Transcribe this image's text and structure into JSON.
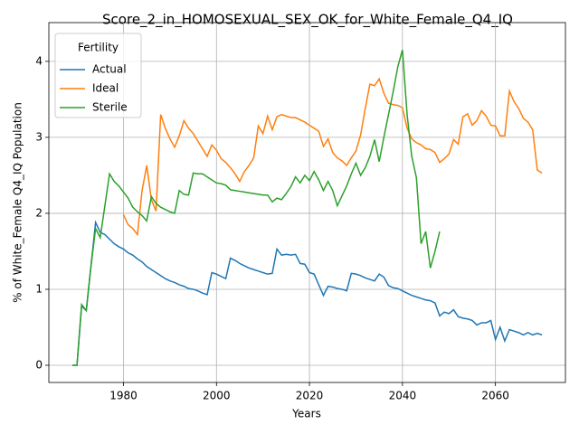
{
  "chart_data": {
    "type": "line",
    "title": "Score_2_in_HOMOSEXUAL_SEX_OK_for_White_Female_Q4_IQ",
    "xlabel": "Years",
    "ylabel": "% of White_Female Q4_IQ Population",
    "legend_title": "Fertility",
    "legend": "upper left",
    "grid": true,
    "xlim": [
      1963.95,
      2075.05
    ],
    "xticks": [
      1980,
      2000,
      2020,
      2040,
      2060
    ],
    "ylim": [
      -0.226,
      4.51
    ],
    "yticks": [
      0,
      1,
      2,
      3,
      4
    ],
    "x": [
      1969,
      1970,
      1971,
      1972,
      1973,
      1974,
      1975,
      1976,
      1977,
      1978,
      1979,
      1980,
      1981,
      1982,
      1983,
      1984,
      1985,
      1986,
      1987,
      1988,
      1989,
      1990,
      1991,
      1992,
      1993,
      1994,
      1995,
      1996,
      1997,
      1998,
      1999,
      2000,
      2001,
      2002,
      2003,
      2004,
      2005,
      2006,
      2007,
      2008,
      2009,
      2010,
      2011,
      2012,
      2013,
      2014,
      2015,
      2016,
      2017,
      2018,
      2019,
      2020,
      2021,
      2022,
      2023,
      2024,
      2025,
      2026,
      2027,
      2028,
      2029,
      2030,
      2031,
      2032,
      2033,
      2034,
      2035,
      2036,
      2037,
      2038,
      2039,
      2040,
      2041,
      2042,
      2043,
      2044,
      2045,
      2046,
      2047,
      2048,
      2049,
      2050,
      2051,
      2052,
      2053,
      2054,
      2055,
      2056,
      2057,
      2058,
      2059,
      2060,
      2061,
      2062,
      2063,
      2064,
      2065,
      2066,
      2067,
      2068,
      2069,
      2070
    ],
    "series": [
      {
        "name": "Actual",
        "color": "#1f77b4",
        "values": [
          0,
          0,
          0.78,
          0.72,
          1.3,
          1.88,
          1.75,
          1.72,
          1.66,
          1.6,
          1.56,
          1.53,
          1.48,
          1.45,
          1.4,
          1.36,
          1.3,
          1.26,
          1.22,
          1.18,
          1.14,
          1.11,
          1.09,
          1.06,
          1.04,
          1.01,
          1.0,
          0.98,
          0.95,
          0.93,
          1.22,
          1.2,
          1.17,
          1.14,
          1.41,
          1.38,
          1.34,
          1.31,
          1.28,
          1.26,
          1.24,
          1.22,
          1.2,
          1.21,
          1.53,
          1.45,
          1.46,
          1.45,
          1.46,
          1.34,
          1.33,
          1.22,
          1.2,
          1.06,
          0.92,
          1.04,
          1.03,
          1.01,
          1.0,
          0.98,
          1.21,
          1.2,
          1.18,
          1.15,
          1.13,
          1.11,
          1.2,
          1.16,
          1.05,
          1.02,
          1.01,
          0.98,
          0.95,
          0.92,
          0.9,
          0.88,
          0.86,
          0.85,
          0.82,
          0.65,
          0.7,
          0.68,
          0.73,
          0.64,
          0.62,
          0.61,
          0.59,
          0.53,
          0.56,
          0.56,
          0.59,
          0.34,
          0.5,
          0.32,
          0.47,
          0.45,
          0.43,
          0.4,
          0.43,
          0.4,
          0.42,
          0.4
        ]
      },
      {
        "name": "Ideal",
        "color": "#ff7f0e",
        "values": [
          null,
          null,
          null,
          null,
          null,
          null,
          null,
          null,
          null,
          null,
          null,
          1.98,
          1.85,
          1.8,
          1.72,
          2.3,
          2.63,
          2.18,
          2.03,
          3.3,
          3.12,
          2.98,
          2.87,
          3.02,
          3.22,
          3.12,
          3.05,
          2.95,
          2.85,
          2.75,
          2.9,
          2.83,
          2.72,
          2.67,
          2.6,
          2.52,
          2.42,
          2.55,
          2.63,
          2.73,
          3.15,
          3.05,
          3.28,
          3.1,
          3.27,
          3.3,
          3.28,
          3.26,
          3.26,
          3.23,
          3.2,
          3.16,
          3.12,
          3.08,
          2.88,
          2.98,
          2.8,
          2.73,
          2.69,
          2.63,
          2.73,
          2.82,
          3.03,
          3.38,
          3.7,
          3.68,
          3.77,
          3.58,
          3.45,
          3.43,
          3.42,
          3.39,
          3.12,
          2.98,
          2.93,
          2.9,
          2.85,
          2.84,
          2.8,
          2.67,
          2.72,
          2.78,
          2.97,
          2.91,
          3.27,
          3.31,
          3.16,
          3.22,
          3.35,
          3.28,
          3.16,
          3.15,
          3.02,
          3.02,
          3.61,
          3.47,
          3.38,
          3.25,
          3.2,
          3.1,
          2.57,
          2.53
        ]
      },
      {
        "name": "Sterile",
        "color": "#2ca02c",
        "values": [
          0,
          0,
          0.8,
          0.72,
          1.3,
          1.8,
          1.68,
          2.1,
          2.52,
          2.42,
          2.36,
          2.28,
          2.2,
          2.08,
          2.02,
          1.97,
          1.9,
          2.22,
          2.13,
          2.08,
          2.05,
          2.02,
          2.0,
          2.3,
          2.25,
          2.24,
          2.53,
          2.52,
          2.52,
          2.48,
          2.44,
          2.4,
          2.39,
          2.37,
          2.31,
          2.3,
          2.29,
          2.28,
          2.27,
          2.26,
          2.25,
          2.24,
          2.24,
          2.15,
          2.2,
          2.18,
          2.26,
          2.35,
          2.48,
          2.4,
          2.5,
          2.43,
          2.55,
          2.44,
          2.3,
          2.42,
          2.3,
          2.1,
          2.23,
          2.36,
          2.52,
          2.66,
          2.5,
          2.6,
          2.75,
          2.97,
          2.68,
          3.0,
          3.3,
          3.6,
          3.93,
          4.15,
          3.3,
          2.75,
          2.47,
          1.6,
          1.76,
          1.28,
          1.5,
          1.76,
          null,
          null,
          null,
          null,
          null,
          null,
          null,
          null,
          null,
          null,
          null,
          null,
          null,
          null,
          null,
          null,
          null,
          null,
          null,
          null,
          null,
          null
        ]
      }
    ]
  }
}
